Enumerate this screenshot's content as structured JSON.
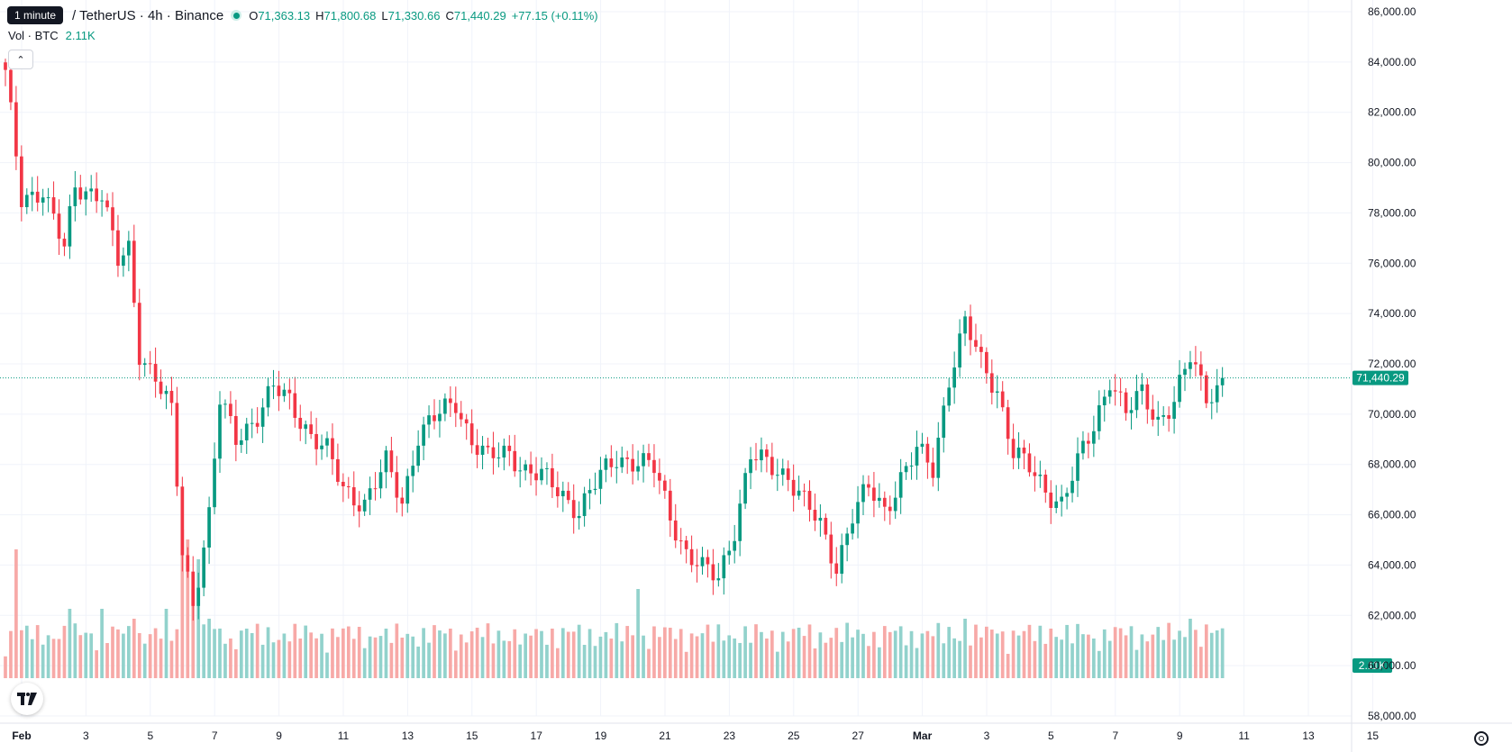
{
  "header": {
    "tooltip": "1 minute",
    "symbol": "/ TetherUS · 4h · Binance",
    "open_key": "O",
    "open": "71,363.13",
    "high_key": "H",
    "high": "71,800.68",
    "low_key": "L",
    "low": "71,330.66",
    "close_key": "C",
    "close": "71,440.29",
    "change": "+77.15 (+0.11%)"
  },
  "volume_label": {
    "name": "Vol · BTC",
    "value": "2.11K"
  },
  "colors": {
    "up": "#089981",
    "down": "#f23645",
    "vol_up": "#92d2cc",
    "vol_down": "#f7a9a7",
    "grid": "#f0f3fa"
  },
  "icons": {
    "collapse": "chevron-up-icon",
    "logo": "tradingview-logo-icon",
    "settings": "gear-icon"
  },
  "chart_data": {
    "type": "candlestick",
    "ylim": [
      58000,
      86000
    ],
    "y_ticks": [
      "86,000.00",
      "84,000.00",
      "82,000.00",
      "80,000.00",
      "78,000.00",
      "76,000.00",
      "74,000.00",
      "72,000.00",
      "70,000.00",
      "68,000.00",
      "66,000.00",
      "64,000.00",
      "62,000.00",
      "60,000.00",
      "58,000.00"
    ],
    "y_tick_values": [
      86000,
      84000,
      82000,
      80000,
      78000,
      76000,
      74000,
      72000,
      70000,
      68000,
      66000,
      64000,
      62000,
      60000,
      58000
    ],
    "x_ticks": [
      "Feb",
      "3",
      "5",
      "7",
      "9",
      "11",
      "13",
      "15",
      "17",
      "19",
      "21",
      "23",
      "25",
      "27",
      "Mar",
      "3",
      "5",
      "7",
      "9",
      "11",
      "13",
      "15"
    ],
    "last_price_label": "71,440.29",
    "last_price": 71440.29,
    "last_volume_label": "2.11K",
    "candles_per_day": 6,
    "price_path": [
      [
        0,
        83500
      ],
      [
        3,
        78500
      ],
      [
        7,
        79000
      ],
      [
        11,
        76500
      ],
      [
        13,
        79000
      ],
      [
        18,
        78800
      ],
      [
        21,
        76000
      ],
      [
        23,
        76500
      ],
      [
        25,
        72500
      ],
      [
        28,
        71500
      ],
      [
        31,
        70000
      ],
      [
        33,
        64500
      ],
      [
        35,
        62500
      ],
      [
        38,
        66000
      ],
      [
        40,
        70500
      ],
      [
        43,
        69000
      ],
      [
        47,
        70000
      ],
      [
        50,
        71000
      ],
      [
        53,
        70500
      ],
      [
        57,
        69200
      ],
      [
        60,
        68500
      ],
      [
        63,
        67000
      ],
      [
        67,
        66500
      ],
      [
        71,
        68000
      ],
      [
        74,
        66500
      ],
      [
        77,
        69200
      ],
      [
        80,
        69800
      ],
      [
        84,
        70500
      ],
      [
        87,
        69000
      ],
      [
        90,
        68200
      ],
      [
        94,
        68500
      ],
      [
        97,
        67800
      ],
      [
        100,
        67500
      ],
      [
        104,
        66800
      ],
      [
        107,
        66200
      ],
      [
        111,
        67500
      ],
      [
        114,
        68300
      ],
      [
        118,
        68100
      ],
      [
        121,
        67800
      ],
      [
        124,
        66000
      ],
      [
        127,
        64500
      ],
      [
        130,
        63800
      ],
      [
        133,
        63500
      ],
      [
        136,
        65500
      ],
      [
        139,
        68300
      ],
      [
        142,
        68000
      ],
      [
        146,
        67600
      ],
      [
        149,
        66500
      ],
      [
        152,
        65500
      ],
      [
        155,
        64000
      ],
      [
        158,
        66000
      ],
      [
        161,
        67000
      ],
      [
        164,
        66200
      ],
      [
        167,
        67500
      ],
      [
        170,
        68500
      ],
      [
        173,
        67800
      ],
      [
        176,
        71500
      ],
      [
        179,
        73600
      ],
      [
        182,
        72000
      ],
      [
        185,
        71000
      ],
      [
        188,
        68500
      ],
      [
        191,
        67800
      ],
      [
        194,
        67000
      ],
      [
        197,
        66500
      ],
      [
        200,
        68000
      ],
      [
        203,
        69500
      ],
      [
        206,
        71500
      ],
      [
        209,
        70000
      ],
      [
        212,
        70800
      ],
      [
        215,
        69800
      ],
      [
        218,
        70500
      ],
      [
        221,
        72200
      ],
      [
        224,
        70800
      ],
      [
        227,
        71200
      ]
    ],
    "volume_spikes": [
      [
        2,
        1.3
      ],
      [
        12,
        0.7
      ],
      [
        18,
        0.7
      ],
      [
        24,
        0.6
      ],
      [
        30,
        0.7
      ],
      [
        33,
        1.5
      ],
      [
        34,
        1.4
      ],
      [
        35,
        0.9
      ],
      [
        36,
        1.2
      ],
      [
        38,
        0.6
      ],
      [
        42,
        0.4
      ],
      [
        45,
        0.5
      ],
      [
        55,
        0.4
      ],
      [
        71,
        0.5
      ],
      [
        83,
        0.5
      ],
      [
        97,
        0.45
      ],
      [
        102,
        0.5
      ],
      [
        118,
        0.9
      ],
      [
        142,
        0.4
      ],
      [
        151,
        0.3
      ],
      [
        179,
        0.6
      ],
      [
        185,
        0.45
      ],
      [
        195,
        0.5
      ],
      [
        203,
        0.4
      ],
      [
        221,
        0.6
      ]
    ]
  }
}
